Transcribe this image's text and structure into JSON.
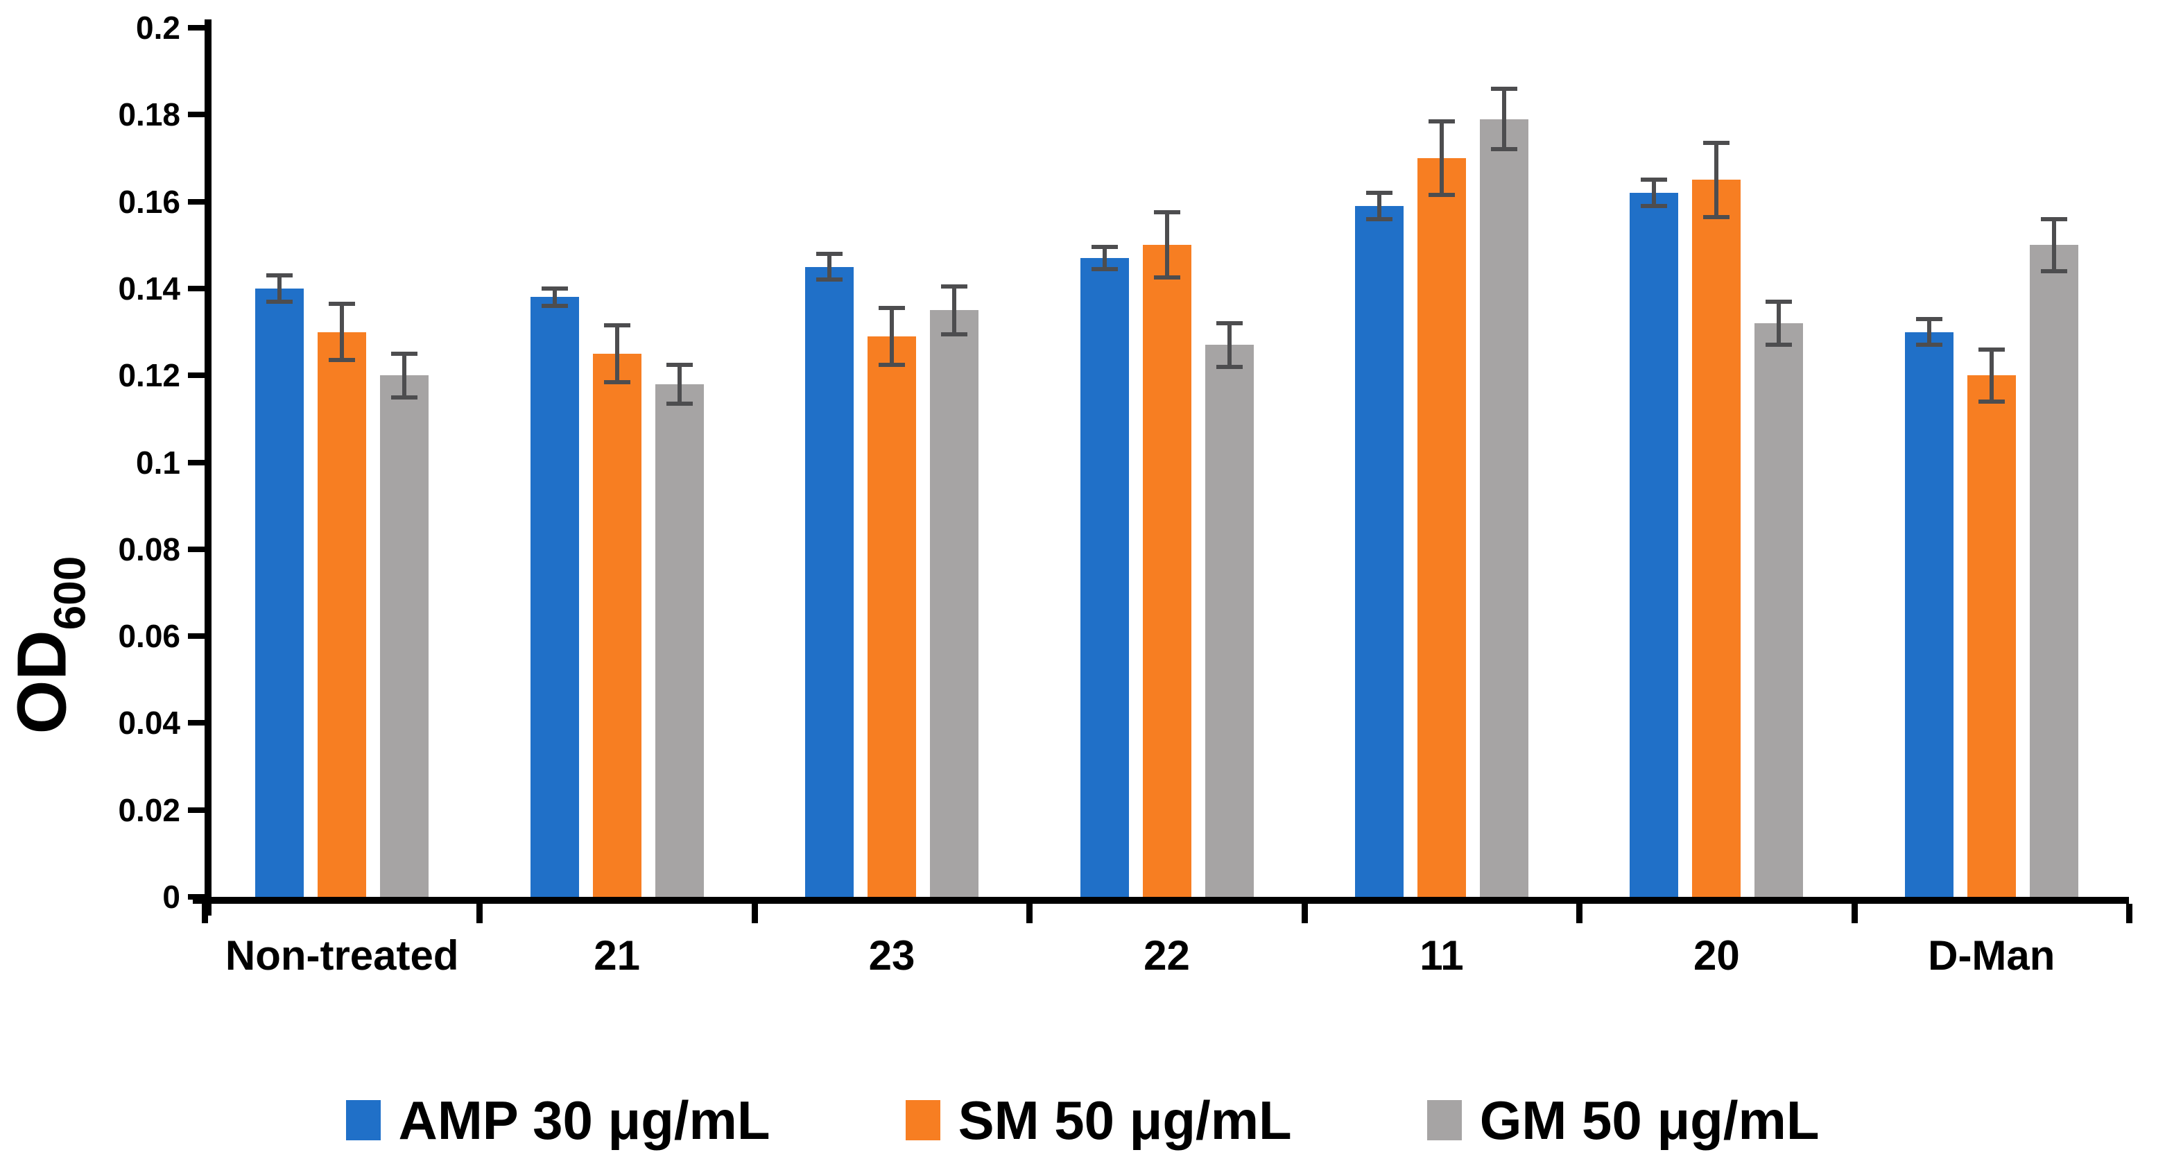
{
  "figure": {
    "background": "#ffffff",
    "axis_color": "#000000",
    "error_bar_color": "#4d4d4f"
  },
  "y_axis": {
    "label_main": "OD",
    "label_subscript": "600",
    "tick_labels": [
      "0.2",
      "0.18",
      "0.16",
      "0.14",
      "0.12",
      "0.1",
      "0.08",
      "0.06",
      "0.04",
      "0.02",
      "0"
    ]
  },
  "chart_data": {
    "type": "bar",
    "title": "",
    "xlabel": "",
    "ylabel": "OD600",
    "ylabel_main": "OD",
    "ylabel_sub": "600",
    "ylim": [
      0,
      0.2
    ],
    "ytick_step": 0.02,
    "grid": false,
    "legend_position": "bottom",
    "error_bars": true,
    "categories": [
      "Non-treated",
      "21",
      "23",
      "22",
      "11",
      "20",
      "D-Man"
    ],
    "series": [
      {
        "name": "AMP 30 μg/mL",
        "color": "#2070c8",
        "values": [
          0.14,
          0.138,
          0.145,
          0.147,
          0.159,
          0.162,
          0.13
        ],
        "errors": [
          0.003,
          0.002,
          0.003,
          0.0025,
          0.003,
          0.003,
          0.003
        ]
      },
      {
        "name": "SM 50 μg/mL",
        "color": "#f77e22",
        "values": [
          0.13,
          0.125,
          0.129,
          0.15,
          0.17,
          0.165,
          0.12
        ],
        "errors": [
          0.0065,
          0.0065,
          0.0065,
          0.0075,
          0.0085,
          0.0085,
          0.006
        ]
      },
      {
        "name": "GM 50 μg/mL",
        "color": "#a6a4a4",
        "values": [
          0.12,
          0.118,
          0.135,
          0.127,
          0.179,
          0.132,
          0.15
        ],
        "errors": [
          0.005,
          0.0045,
          0.0055,
          0.005,
          0.007,
          0.005,
          0.006
        ]
      }
    ]
  }
}
